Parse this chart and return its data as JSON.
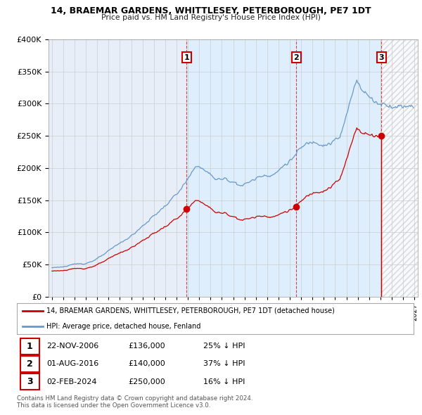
{
  "title1": "14, BRAEMAR GARDENS, WHITTLESEY, PETERBOROUGH, PE7 1DT",
  "title2": "Price paid vs. HM Land Registry's House Price Index (HPI)",
  "ylim": [
    0,
    400000
  ],
  "yticks": [
    0,
    50000,
    100000,
    150000,
    200000,
    250000,
    300000,
    350000,
    400000
  ],
  "ytick_labels": [
    "£0",
    "£50K",
    "£100K",
    "£150K",
    "£200K",
    "£250K",
    "£300K",
    "£350K",
    "£400K"
  ],
  "sale_year_nums": [
    2006.896,
    2016.583,
    2024.085
  ],
  "sale_prices": [
    136000,
    140000,
    250000
  ],
  "sale_labels": [
    "1",
    "2",
    "3"
  ],
  "sale_info": [
    {
      "num": "1",
      "date": "22-NOV-2006",
      "price": "£136,000",
      "pct": "25% ↓ HPI"
    },
    {
      "num": "2",
      "date": "01-AUG-2016",
      "price": "£140,000",
      "pct": "37% ↓ HPI"
    },
    {
      "num": "3",
      "date": "02-FEB-2024",
      "price": "£250,000",
      "pct": "16% ↓ HPI"
    }
  ],
  "legend_line1": "14, BRAEMAR GARDENS, WHITTLESEY, PETERBOROUGH, PE7 1DT (detached house)",
  "legend_line2": "HPI: Average price, detached house, Fenland",
  "footer1": "Contains HM Land Registry data © Crown copyright and database right 2024.",
  "footer2": "This data is licensed under the Open Government Licence v3.0.",
  "sale_color": "#cc0000",
  "hpi_color": "#6699cc",
  "hpi_fill_color": "#ddeeff",
  "background_color": "#e8eef8",
  "hatch_color": "#c0c8d8",
  "grid_color": "#cccccc",
  "xmin": 1994.7,
  "xmax": 2027.3
}
